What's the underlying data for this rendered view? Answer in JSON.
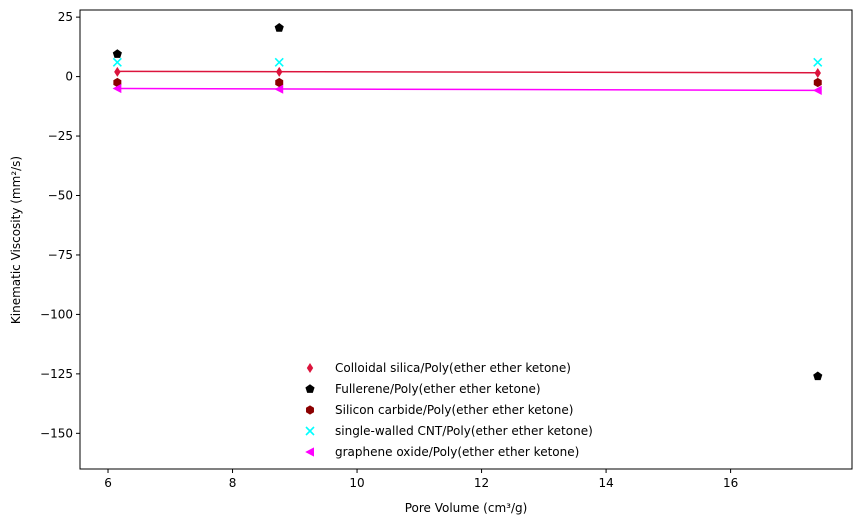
{
  "chart_data": {
    "type": "scatter",
    "xlabel": "Pore Volume (cm³/g)",
    "ylabel": "Kinematic Viscosity (mm²/s)",
    "xlim": [
      5.55,
      17.95
    ],
    "ylim": [
      -165,
      28
    ],
    "x_ticks": [
      6,
      8,
      10,
      12,
      14,
      16
    ],
    "y_ticks": [
      25,
      0,
      -25,
      -50,
      -75,
      -100,
      -125,
      -150
    ],
    "x_tick_labels": [
      "6",
      "8",
      "10",
      "12",
      "14",
      "16"
    ],
    "y_tick_labels": [
      "25",
      "0",
      "−25",
      "−50",
      "−75",
      "−100",
      "−125",
      "−150"
    ],
    "grid": false,
    "legend_position": "lower-center",
    "series": [
      {
        "name": "Colloidal silica/Poly(ether ether ketone)",
        "marker": "thin-diamond",
        "color": "#dc143c",
        "x": [
          6.15,
          8.75,
          17.4
        ],
        "y": [
          2,
          2,
          1.5
        ],
        "trend": {
          "x": [
            6.15,
            17.4
          ],
          "y": [
            2.2,
            1.6
          ]
        }
      },
      {
        "name": "Fullerene/Poly(ether ether ketone)",
        "marker": "pentagon",
        "color": "#000000",
        "x": [
          6.15,
          8.75,
          17.4
        ],
        "y": [
          9.5,
          20.5,
          -126
        ]
      },
      {
        "name": "Silicon carbide/Poly(ether ether ketone)",
        "marker": "hexagon",
        "color": "#8b0000",
        "x": [
          6.15,
          8.75,
          17.4
        ],
        "y": [
          -2.5,
          -2.5,
          -2.5
        ]
      },
      {
        "name": "single-walled CNT/Poly(ether ether ketone)",
        "marker": "x",
        "color": "#00ffff",
        "x": [
          6.15,
          8.75,
          17.4
        ],
        "y": [
          6,
          6,
          6
        ]
      },
      {
        "name": "graphene oxide/Poly(ether ether ketone)",
        "marker": "triangle-left",
        "color": "#ff00ff",
        "x": [
          6.15,
          8.75,
          17.4
        ],
        "y": [
          -5,
          -5.3,
          -5.8
        ],
        "trend": {
          "x": [
            6.15,
            17.4
          ],
          "y": [
            -5.0,
            -5.8
          ]
        }
      }
    ]
  }
}
